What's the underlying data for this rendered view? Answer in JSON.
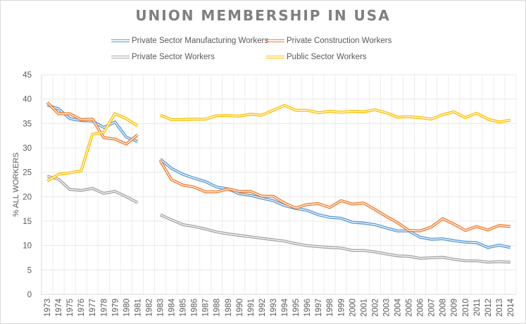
{
  "chart_data": {
    "type": "line",
    "title": "UNION MEMBERSHIP IN USA",
    "xlabel": "",
    "ylabel": "% ALL WORKERS",
    "ylim": [
      0,
      45
    ],
    "yticks": [
      "0",
      "5",
      "10",
      "15",
      "20",
      "25",
      "30",
      "35",
      "40",
      "45"
    ],
    "grid": true,
    "legend_position": "top",
    "categories": [
      "1973",
      "1974",
      "1975",
      "1976",
      "1977",
      "1978",
      "1979",
      "1980",
      "1981",
      "1982",
      "1983",
      "1984",
      "1985",
      "1986",
      "1987",
      "1988",
      "1989",
      "1990",
      "1991",
      "1992",
      "1993",
      "1994",
      "1995",
      "1996",
      "1997",
      "1998",
      "1999",
      "2000",
      "2001",
      "2002",
      "2003",
      "2004",
      "2005",
      "2006",
      "2007",
      "2008",
      "2009",
      "2010",
      "2011",
      "2012",
      "2013",
      "2014"
    ],
    "series": [
      {
        "name": "Private Sector Manufacturing Workers",
        "color": "#5b9bd5",
        "values": [
          38.8,
          38.0,
          36.0,
          35.6,
          35.5,
          34.2,
          35.3,
          32.2,
          31.3,
          null,
          27.7,
          25.8,
          24.6,
          23.8,
          23.1,
          22.0,
          21.6,
          20.6,
          20.3,
          19.7,
          19.2,
          18.2,
          17.6,
          17.2,
          16.3,
          15.8,
          15.6,
          14.8,
          14.6,
          14.3,
          13.6,
          13.0,
          13.0,
          11.7,
          11.3,
          11.4,
          11.0,
          10.7,
          10.6,
          9.6,
          10.1,
          9.6
        ]
      },
      {
        "name": "Private Construction Workers",
        "color": "#ed7d31",
        "values": [
          39.3,
          37.0,
          37.0,
          35.8,
          35.9,
          32.1,
          31.8,
          30.8,
          32.7,
          null,
          27.4,
          23.5,
          22.4,
          22.0,
          21.0,
          21.0,
          21.6,
          21.1,
          21.1,
          20.1,
          20.1,
          18.7,
          17.7,
          18.4,
          18.6,
          17.8,
          19.2,
          18.5,
          18.7,
          17.4,
          16.0,
          14.7,
          13.1,
          13.0,
          13.8,
          15.5,
          14.4,
          13.1,
          13.9,
          13.2,
          14.1,
          13.9
        ]
      },
      {
        "name": "Private Sector Workers",
        "color": "#a5a5a5",
        "values": [
          24.2,
          23.6,
          21.5,
          21.3,
          21.7,
          20.7,
          21.1,
          20.0,
          18.8,
          null,
          16.3,
          15.3,
          14.3,
          13.9,
          13.4,
          12.8,
          12.4,
          12.1,
          11.8,
          11.5,
          11.2,
          10.9,
          10.4,
          10.0,
          9.8,
          9.6,
          9.5,
          9.0,
          9.0,
          8.7,
          8.3,
          7.9,
          7.8,
          7.4,
          7.5,
          7.6,
          7.2,
          6.9,
          6.9,
          6.6,
          6.7,
          6.6
        ]
      },
      {
        "name": "Public Sector Workers",
        "color": "#ffc000",
        "values": [
          23.2,
          24.6,
          24.9,
          25.3,
          32.8,
          33.2,
          37.0,
          36.0,
          34.5,
          null,
          36.7,
          35.8,
          35.8,
          35.9,
          35.9,
          36.6,
          36.6,
          36.5,
          36.9,
          36.7,
          37.7,
          38.7,
          37.7,
          37.7,
          37.2,
          37.5,
          37.3,
          37.5,
          37.4,
          37.8,
          37.2,
          36.3,
          36.4,
          36.2,
          35.9,
          36.8,
          37.4,
          36.2,
          37.1,
          35.9,
          35.3,
          35.7
        ]
      }
    ]
  }
}
